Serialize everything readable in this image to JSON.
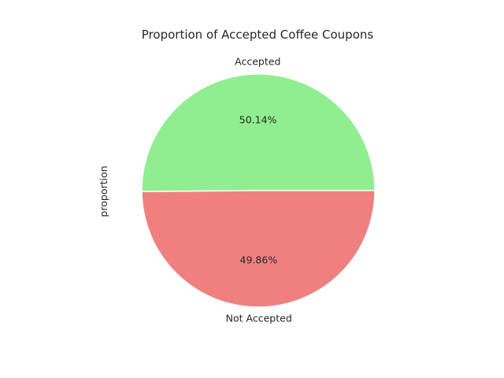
{
  "chart_data": {
    "type": "pie",
    "title": "Proportion of Accepted Coffee Coupons",
    "ylabel": "proportion",
    "start_angle_deg": 0,
    "direction": "counterclockwise",
    "slices": [
      {
        "label": "Accepted",
        "value": 0.5014,
        "pct_label": "50.14%",
        "color": "#90EE90"
      },
      {
        "label": "Not Accepted",
        "value": 0.4986,
        "pct_label": "49.86%",
        "color": "#F08080"
      }
    ],
    "edge_color": "#ffffff"
  }
}
